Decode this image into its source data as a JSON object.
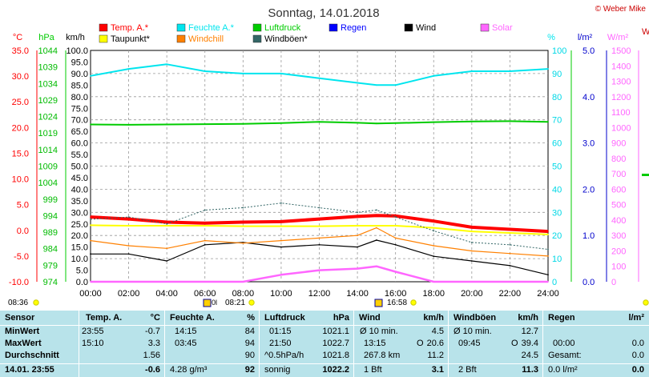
{
  "header": {
    "title": "Sonntag, 14.01.2018",
    "copyright": "© Weber Mike"
  },
  "legend": [
    {
      "label": "Temp. A.*",
      "color": "#ff0000"
    },
    {
      "label": "Feuchte A.*",
      "color": "#00e5ee"
    },
    {
      "label": "Luftdruck",
      "color": "#00cc00"
    },
    {
      "label": "Regen",
      "color": "#0000ff"
    },
    {
      "label": "Wind",
      "color": "#000000"
    },
    {
      "label": "Solar",
      "color": "#ff66ff"
    },
    {
      "label": "Taupunkt*",
      "color": "#ffff00"
    },
    {
      "label": "Windchill",
      "color": "#ff8000"
    },
    {
      "label": "Windböen*",
      "color": "#336666"
    }
  ],
  "axis_titles": {
    "temp": "°C",
    "pressure": "hPa",
    "wind": "km/h",
    "humidity": "%",
    "rain": "l/m²",
    "solar": "W/m²",
    "edge": "W"
  },
  "axes": {
    "temp_ticks": [
      "35.0",
      "30.0",
      "25.0",
      "20.0",
      "15.0",
      "10.0",
      "5.0",
      "0.0",
      "-5.0",
      "-10.0"
    ],
    "pressure_ticks": [
      "1044",
      "1039",
      "1034",
      "1029",
      "1024",
      "1019",
      "1014",
      "1009",
      "1004",
      "999",
      "994",
      "989",
      "984",
      "979",
      "974"
    ],
    "wind_ticks": [
      "100.0",
      "95.0",
      "90.0",
      "85.0",
      "80.0",
      "75.0",
      "70.0",
      "65.0",
      "60.0",
      "55.0",
      "50.0",
      "45.0",
      "40.0",
      "35.0",
      "30.0",
      "25.0",
      "20.0",
      "15.0",
      "10.0",
      "5.0",
      "0.0"
    ],
    "humidity_ticks": [
      "100",
      "90",
      "80",
      "70",
      "60",
      "50",
      "40",
      "30",
      "20",
      "10",
      "0"
    ],
    "rain_ticks": [
      "5.0",
      "4.0",
      "3.0",
      "2.0",
      "1.0",
      "0.0"
    ],
    "solar_ticks": [
      "1500",
      "1400",
      "1300",
      "1200",
      "1100",
      "1000",
      "900",
      "800",
      "700",
      "600",
      "500",
      "400",
      "300",
      "200",
      "100",
      "0"
    ],
    "time_ticks": [
      "00:00",
      "02:00",
      "04:00",
      "06:00",
      "08:00",
      "10:00",
      "12:00",
      "14:00",
      "16:00",
      "18:00",
      "20:00",
      "22:00",
      "24:00"
    ]
  },
  "sun": {
    "sunrise": "08:36",
    "sunset": "16:58",
    "solar_noon": "08:21",
    "mark_left": "0l",
    "mark_mid": "0l"
  },
  "chart_data": {
    "type": "line",
    "x": [
      "00:00",
      "02:00",
      "04:00",
      "06:00",
      "08:00",
      "10:00",
      "12:00",
      "14:00",
      "15:00",
      "16:00",
      "18:00",
      "20:00",
      "22:00",
      "24:00"
    ],
    "series": [
      {
        "name": "Temp. A.*",
        "axis": "temp",
        "color": "#ff0000",
        "values": [
          2.6,
          2.2,
          1.6,
          1.4,
          1.6,
          1.7,
          2.2,
          2.7,
          2.9,
          2.8,
          1.8,
          0.6,
          0.2,
          -0.2
        ]
      },
      {
        "name": "Feuchte A.*",
        "axis": "humidity",
        "color": "#00e5ee",
        "values": [
          89,
          92,
          94,
          91,
          90,
          90,
          88,
          86,
          85,
          85,
          89,
          91,
          91,
          92
        ]
      },
      {
        "name": "Luftdruck",
        "axis": "hPa",
        "color": "#00cc00",
        "values": [
          1021.6,
          1021.5,
          1021.6,
          1021.7,
          1021.8,
          1022.0,
          1022.4,
          1022.1,
          1021.9,
          1022.0,
          1022.3,
          1022.5,
          1022.6,
          1022.4
        ]
      },
      {
        "name": "Taupunkt*",
        "axis": "temp",
        "color": "#ffff00",
        "values": [
          1.0,
          0.9,
          0.9,
          0.9,
          0.8,
          0.8,
          0.8,
          0.9,
          0.9,
          0.9,
          0.5,
          -0.2,
          -0.5,
          -0.8
        ]
      },
      {
        "name": "Wind",
        "axis": "km/h",
        "color": "#000000",
        "values": [
          12,
          12,
          9,
          16,
          17,
          15,
          16,
          15,
          18,
          16,
          11,
          9,
          7,
          3
        ]
      },
      {
        "name": "Windchill",
        "axis": "temp",
        "color": "#ff8000",
        "values": [
          -2.0,
          -3.0,
          -3.5,
          -2.0,
          -2.5,
          -2.0,
          -1.5,
          -1.0,
          0.5,
          -1.5,
          -3.0,
          -4.0,
          -4.5,
          -5.0
        ]
      },
      {
        "name": "Windböen*",
        "axis": "km/h",
        "color": "#336666",
        "values": [
          27,
          28,
          25,
          31,
          32,
          34,
          32,
          30,
          31,
          28,
          22,
          17,
          16,
          14
        ]
      },
      {
        "name": "Solar",
        "axis": "W/m²",
        "color": "#ff66ff",
        "values": [
          0,
          0,
          0,
          0,
          0,
          45,
          75,
          85,
          100,
          65,
          0,
          0,
          0,
          0
        ]
      }
    ],
    "ylim_temp": [
      -10,
      35
    ],
    "ylim_humidity": [
      0,
      100
    ],
    "ylim_wind": [
      0,
      100
    ],
    "ylim_pressure": [
      974,
      1044
    ],
    "ylim_solar": [
      0,
      1500
    ],
    "ylim_rain": [
      0,
      5
    ],
    "grid": true
  },
  "stats": {
    "sensor_header": "Sensor",
    "row_labels": [
      "MinWert",
      "MaxWert",
      "Durchschnitt",
      "14.01. 23:55"
    ],
    "temp": {
      "header": "Temp. A.",
      "unit": "°C",
      "min_time": "23:55",
      "min": "-0.7",
      "max_time": "15:10",
      "max": "3.3",
      "avg": "1.56",
      "current": "-0.6"
    },
    "humidity": {
      "header": "Feuchte A.",
      "unit": "%",
      "min_time": "14:15",
      "min": "84",
      "max_time": "03:45",
      "max": "94",
      "avg": "90",
      "abs": "4.28 g/m³",
      "current": "92"
    },
    "pressure": {
      "header": "Luftdruck",
      "unit": "hPa",
      "min_time": "01:15",
      "min": "1021.1",
      "max_time": "21:50",
      "max": "1022.7",
      "trend": "^0.5hPa/h",
      "avg": "1021.8",
      "weather": "sonnig",
      "current": "1022.2"
    },
    "wind": {
      "header": "Wind",
      "unit": "km/h",
      "min_label": "Ø 10 min.",
      "min": "4.5",
      "max_time": "13:15",
      "max_dir": "O",
      "max": "20.6",
      "dist": "267.8 km",
      "avg": "11.2",
      "bft": "1 Bft",
      "current": "3.1"
    },
    "gust": {
      "header": "Windböen",
      "unit": "km/h",
      "min_label": "Ø 10 min.",
      "min": "12.7",
      "max_time": "09:45",
      "max_dir": "O",
      "max": "39.4",
      "avg": "24.5",
      "bft": "2 Bft",
      "current": "11.3"
    },
    "rain": {
      "header": "Regen",
      "unit": "l/m²",
      "max_time": "00:00",
      "max": "0.0",
      "total_label": "Gesamt:",
      "total": "0.0",
      "current": "0.0 l/m²",
      "current_val": "0.0"
    }
  }
}
